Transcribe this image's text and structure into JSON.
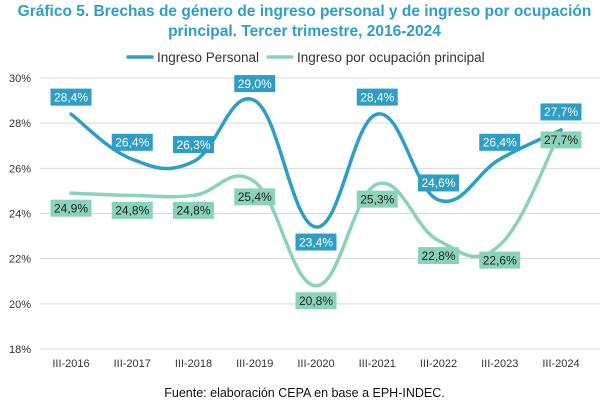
{
  "title_line1": "Gráfico 5. Brechas de género de ingreso personal y de ingreso por ocupación",
  "title_line2": "principal. Tercer trimestre, 2016-2024",
  "source": "Fuente: elaboración CEPA en base a EPH-INDEC.",
  "colors": {
    "title": "#2e9ec4",
    "ingreso_personal": "#2e9ec4",
    "ingreso_ocupacion": "#8ad3b8",
    "label_text_personal": "#ffffff",
    "label_text_ocupacion": "#1f1f1f",
    "grid": "#d9d9d9"
  },
  "chart_data": {
    "type": "line",
    "title": "Gráfico 5. Brechas de género de ingreso personal y de ingreso por ocupación principal. Tercer trimestre, 2016-2024",
    "categories": [
      "III-2016",
      "III-2017",
      "III-2018",
      "III-2019",
      "III-2020",
      "III-2021",
      "III-2022",
      "III-2023",
      "III-2024"
    ],
    "series": [
      {
        "name": "Ingreso Personal",
        "values": [
          28.4,
          26.4,
          26.3,
          29.0,
          23.4,
          28.4,
          24.6,
          26.4,
          27.7
        ],
        "labels": [
          "28,4%",
          "26,4%",
          "26,3%",
          "29,0%",
          "23,4%",
          "28,4%",
          "24,6%",
          "26,4%",
          "27,7%"
        ]
      },
      {
        "name": "Ingreso por ocupación principal",
        "values": [
          24.9,
          24.8,
          24.8,
          25.4,
          20.8,
          25.3,
          22.8,
          22.6,
          27.7
        ],
        "labels": [
          "24,9%",
          "24,8%",
          "24,8%",
          "25,4%",
          "20,8%",
          "25,3%",
          "22,8%",
          "22,6%",
          "27,7%"
        ]
      }
    ],
    "yticks": [
      "18%",
      "20%",
      "22%",
      "24%",
      "26%",
      "28%",
      "30%"
    ],
    "ylim": [
      18,
      30
    ],
    "xlabel": "",
    "ylabel": "",
    "grid": true,
    "legend": "top-center",
    "smooth": true
  }
}
